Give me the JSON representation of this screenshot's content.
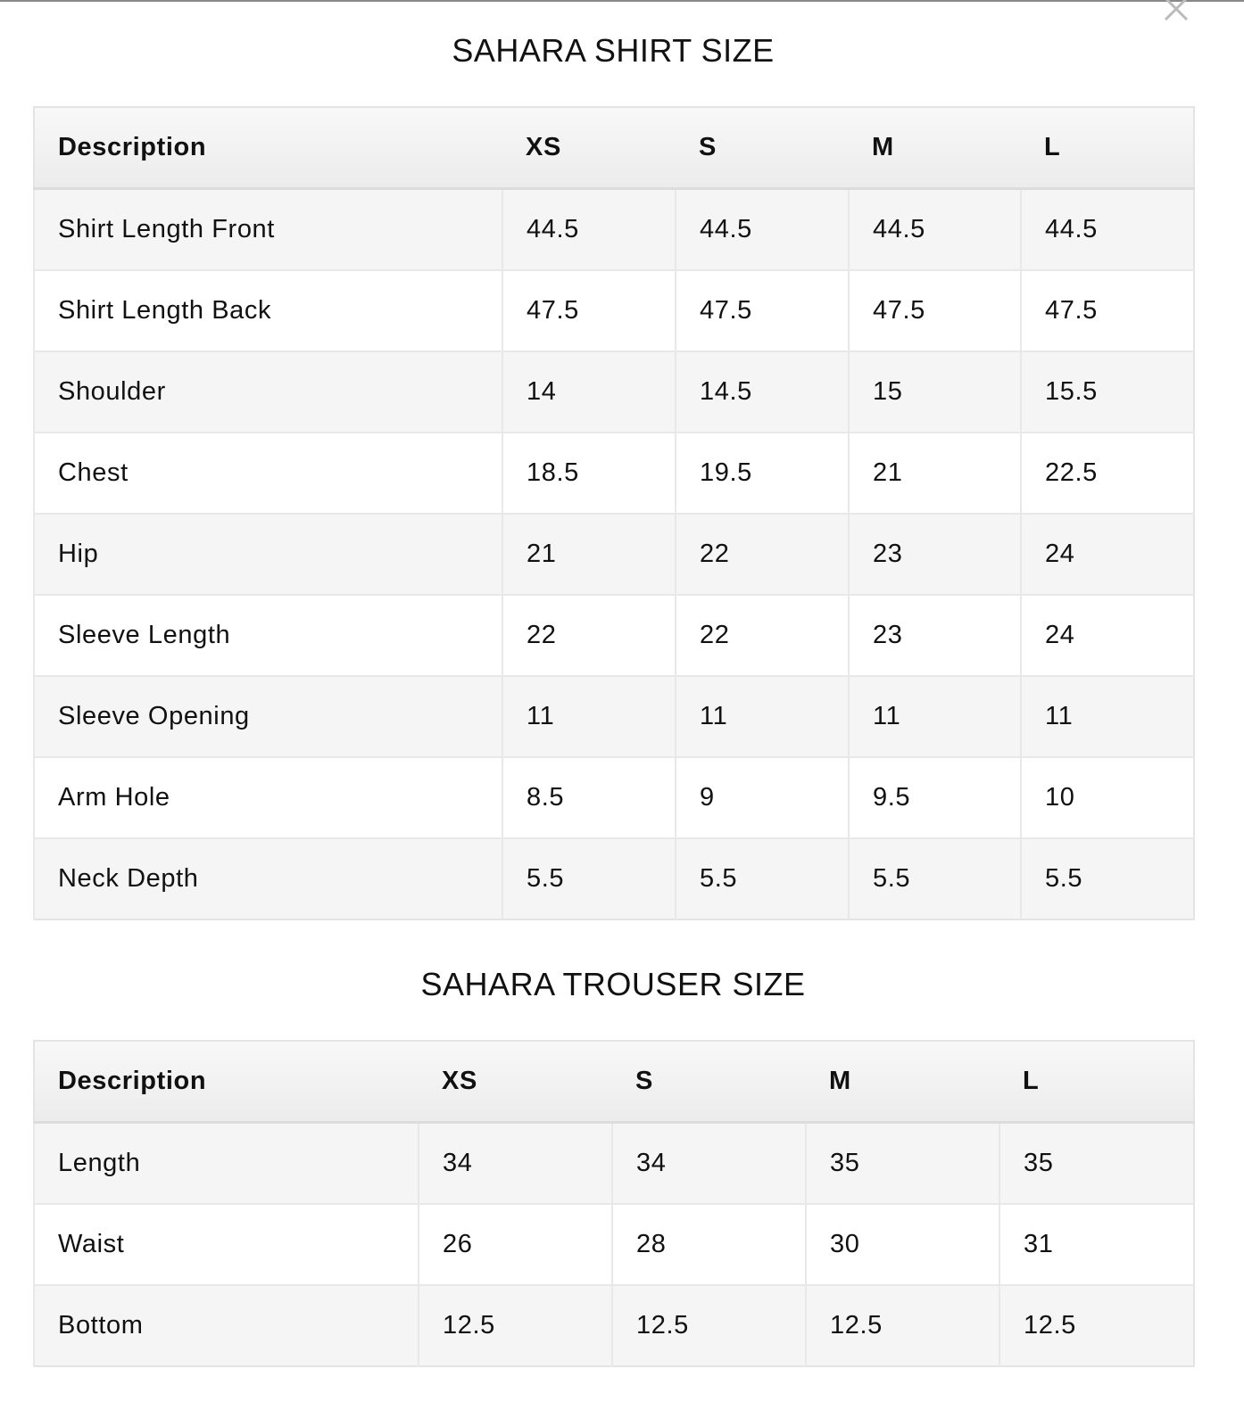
{
  "close_icon": "close-icon",
  "shirt": {
    "title": "SAHARA SHIRT SIZE",
    "headers": [
      "Description",
      "XS",
      "S",
      "M",
      "L"
    ],
    "rows": [
      [
        "Shirt Length Front",
        "44.5",
        "44.5",
        "44.5",
        "44.5"
      ],
      [
        "Shirt Length Back",
        "47.5",
        "47.5",
        "47.5",
        "47.5"
      ],
      [
        "Shoulder",
        "14",
        "14.5",
        "15",
        "15.5"
      ],
      [
        "Chest",
        "18.5",
        "19.5",
        "21",
        "22.5"
      ],
      [
        "Hip",
        "21",
        "22",
        "23",
        "24"
      ],
      [
        "Sleeve Length",
        "22",
        "22",
        "23",
        "24"
      ],
      [
        "Sleeve Opening",
        "11",
        "11",
        "11",
        "11"
      ],
      [
        "Arm Hole",
        "8.5",
        "9",
        "9.5",
        "10"
      ],
      [
        "Neck Depth",
        "5.5",
        "5.5",
        "5.5",
        "5.5"
      ]
    ]
  },
  "trouser": {
    "title": "SAHARA TROUSER SIZE",
    "headers": [
      "Description",
      "XS",
      "S",
      "M",
      "L"
    ],
    "rows": [
      [
        "Length",
        "34",
        "34",
        "35",
        "35"
      ],
      [
        "Waist",
        "26",
        "28",
        "30",
        "31"
      ],
      [
        "Bottom",
        "12.5",
        "12.5",
        "12.5",
        "12.5"
      ]
    ]
  }
}
